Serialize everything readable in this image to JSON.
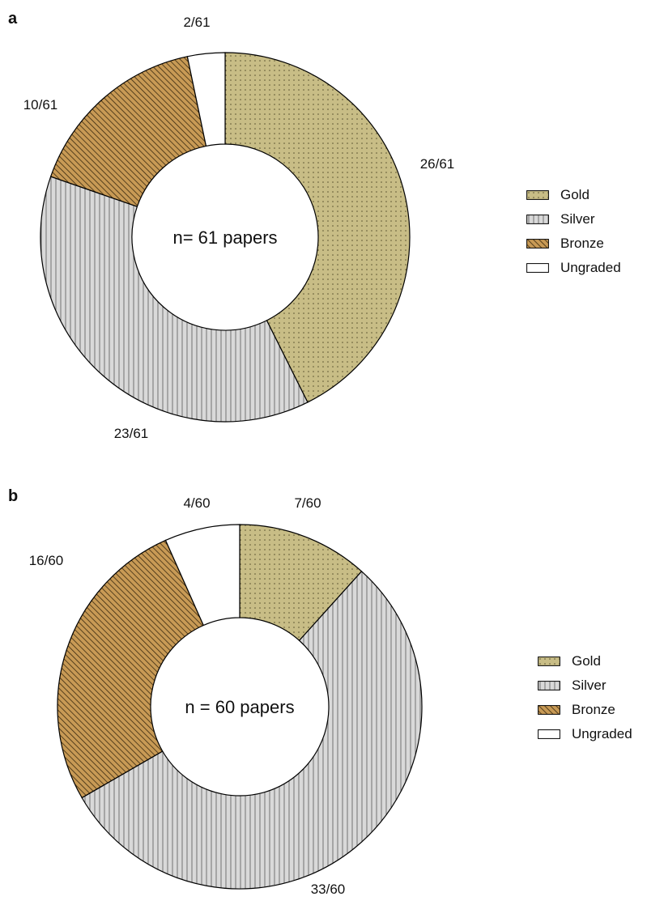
{
  "patterns": {
    "Gold": {
      "fill": "#c8bd86",
      "stroke": "#5a5330",
      "style": "dots"
    },
    "Silver": {
      "fill": "#d9d9d9",
      "stroke": "#666666",
      "style": "vlines"
    },
    "Bronze": {
      "fill": "#c89a55",
      "stroke": "#3a2a10",
      "style": "diag"
    },
    "Ungraded": {
      "fill": "#ffffff",
      "stroke": "#000000",
      "style": "none"
    }
  },
  "panels": [
    {
      "letter": "a"
    },
    {
      "letter": "b"
    }
  ],
  "chart_data": [
    {
      "type": "pie",
      "style": "donut",
      "center_text": "n= 61 papers",
      "total": 61,
      "legend_placement": "right",
      "slices": [
        {
          "name": "Gold",
          "value": 26,
          "label": "26/61"
        },
        {
          "name": "Silver",
          "value": 23,
          "label": "23/61"
        },
        {
          "name": "Bronze",
          "value": 10,
          "label": "10/61"
        },
        {
          "name": "Ungraded",
          "value": 2,
          "label": "2/61"
        }
      ],
      "legend": [
        "Gold",
        "Silver",
        "Bronze",
        "Ungraded"
      ]
    },
    {
      "type": "pie",
      "style": "donut",
      "center_text": "n = 60 papers",
      "total": 60,
      "legend_placement": "right",
      "slices": [
        {
          "name": "Gold",
          "value": 7,
          "label": "7/60"
        },
        {
          "name": "Silver",
          "value": 33,
          "label": "33/60"
        },
        {
          "name": "Bronze",
          "value": 16,
          "label": "16/60"
        },
        {
          "name": "Ungraded",
          "value": 4,
          "label": "4/60"
        }
      ],
      "legend": [
        "Gold",
        "Silver",
        "Bronze",
        "Ungraded"
      ]
    }
  ]
}
